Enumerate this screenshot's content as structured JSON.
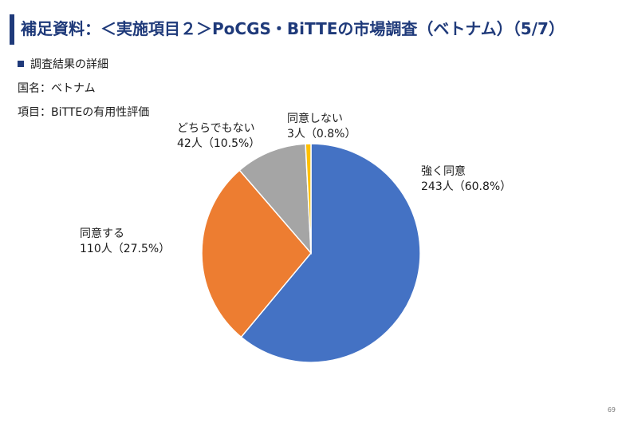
{
  "header": {
    "title": "補足資料：＜実施項目２＞PoCGS・BiTTEの市場調査（ベトナム）（5/7）"
  },
  "section": {
    "bullet_label": "調査結果の詳細",
    "country": "国名：ベトナム",
    "item": "項目：BiTTEの有用性評価"
  },
  "chart_data": {
    "type": "pie",
    "slices": [
      {
        "name": "強く同意",
        "count": "243人（60.8%）",
        "value": 60.8,
        "color": "#4472c4"
      },
      {
        "name": "同意する",
        "count": "110人（27.5%）",
        "value": 27.5,
        "color": "#ed7d31"
      },
      {
        "name": "どちらでもない",
        "count": "42人（10.5%）",
        "value": 10.5,
        "color": "#a5a5a5"
      },
      {
        "name": "同意しない",
        "count": "3人（0.8%）",
        "value": 0.8,
        "color": "#ffc000"
      }
    ],
    "start": "12 o'clock",
    "direction": "clockwise"
  },
  "footer": {
    "page_number": "69"
  }
}
